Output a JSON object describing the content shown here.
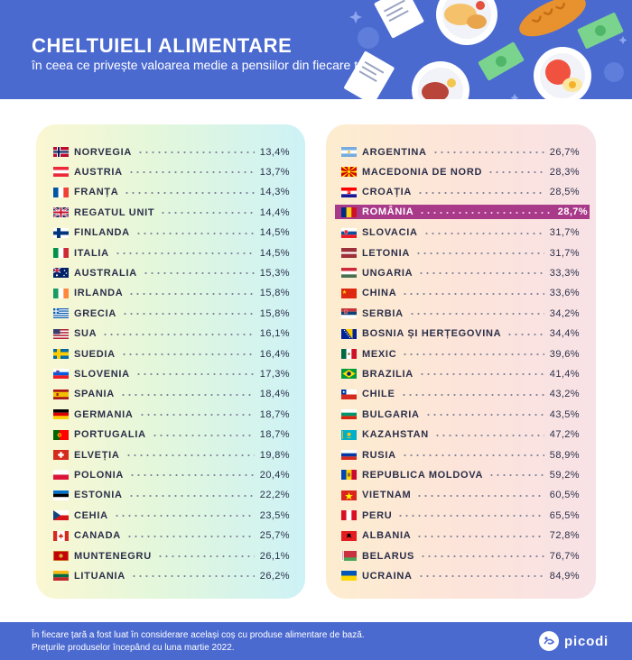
{
  "header": {
    "title": "CHELTUIELI ALIMENTARE",
    "subtitle": "în ceea ce privește valoarea medie a pensiilor din fiecare țară",
    "bg_color": "#4b6ad0"
  },
  "chart_data": {
    "type": "table",
    "title": "CHELTUIELI ALIMENTARE",
    "subtitle": "în ceea ce privește valoarea medie a pensiilor din fiecare țară",
    "highlight": "ROMÂNIA",
    "left_column": [
      {
        "country": "NORVEGIA",
        "value": "13,4%",
        "num": 13.4,
        "flag": "norway"
      },
      {
        "country": "AUSTRIA",
        "value": "13,7%",
        "num": 13.7,
        "flag": "austria"
      },
      {
        "country": "FRANȚA",
        "value": "14,3%",
        "num": 14.3,
        "flag": "france"
      },
      {
        "country": "REGATUL UNIT",
        "value": "14,4%",
        "num": 14.4,
        "flag": "uk"
      },
      {
        "country": "FINLANDA",
        "value": "14,5%",
        "num": 14.5,
        "flag": "finland"
      },
      {
        "country": "ITALIA",
        "value": "14,5%",
        "num": 14.5,
        "flag": "italy"
      },
      {
        "country": "AUSTRALIA",
        "value": "15,3%",
        "num": 15.3,
        "flag": "australia"
      },
      {
        "country": "IRLANDA",
        "value": "15,8%",
        "num": 15.8,
        "flag": "ireland"
      },
      {
        "country": "GRECIA",
        "value": "15,8%",
        "num": 15.8,
        "flag": "greece"
      },
      {
        "country": "SUA",
        "value": "16,1%",
        "num": 16.1,
        "flag": "usa"
      },
      {
        "country": "SUEDIA",
        "value": "16,4%",
        "num": 16.4,
        "flag": "sweden"
      },
      {
        "country": "SLOVENIA",
        "value": "17,3%",
        "num": 17.3,
        "flag": "slovenia"
      },
      {
        "country": "SPANIA",
        "value": "18,4%",
        "num": 18.4,
        "flag": "spain"
      },
      {
        "country": "GERMANIA",
        "value": "18,7%",
        "num": 18.7,
        "flag": "germany"
      },
      {
        "country": "PORTUGALIA",
        "value": "18,7%",
        "num": 18.7,
        "flag": "portugal"
      },
      {
        "country": "ELVEȚIA",
        "value": "19,8%",
        "num": 19.8,
        "flag": "switzerland"
      },
      {
        "country": "POLONIA",
        "value": "20,4%",
        "num": 20.4,
        "flag": "poland"
      },
      {
        "country": "ESTONIA",
        "value": "22,2%",
        "num": 22.2,
        "flag": "estonia"
      },
      {
        "country": "CEHIA",
        "value": "23,5%",
        "num": 23.5,
        "flag": "czechia"
      },
      {
        "country": "CANADA",
        "value": "25,7%",
        "num": 25.7,
        "flag": "canada"
      },
      {
        "country": "MUNTENEGRU",
        "value": "26,1%",
        "num": 26.1,
        "flag": "montenegro"
      },
      {
        "country": "LITUANIA",
        "value": "26,2%",
        "num": 26.2,
        "flag": "lithuania"
      }
    ],
    "right_column": [
      {
        "country": "ARGENTINA",
        "value": "26,7%",
        "num": 26.7,
        "flag": "argentina"
      },
      {
        "country": "MACEDONIA DE NORD",
        "value": "28,3%",
        "num": 28.3,
        "flag": "north-macedonia"
      },
      {
        "country": "CROAȚIA",
        "value": "28,5%",
        "num": 28.5,
        "flag": "croatia"
      },
      {
        "country": "ROMÂNIA",
        "value": "28,7%",
        "num": 28.7,
        "flag": "romania"
      },
      {
        "country": "SLOVACIA",
        "value": "31,7%",
        "num": 31.7,
        "flag": "slovakia"
      },
      {
        "country": "LETONIA",
        "value": "31,7%",
        "num": 31.7,
        "flag": "latvia"
      },
      {
        "country": "UNGARIA",
        "value": "33,3%",
        "num": 33.3,
        "flag": "hungary"
      },
      {
        "country": "CHINA",
        "value": "33,6%",
        "num": 33.6,
        "flag": "china"
      },
      {
        "country": "SERBIA",
        "value": "34,2%",
        "num": 34.2,
        "flag": "serbia"
      },
      {
        "country": "BOSNIA ȘI HERȚEGOVINA",
        "value": "34,4%",
        "num": 34.4,
        "flag": "bosnia"
      },
      {
        "country": "MEXIC",
        "value": "39,6%",
        "num": 39.6,
        "flag": "mexico"
      },
      {
        "country": "BRAZILIA",
        "value": "41,4%",
        "num": 41.4,
        "flag": "brazil"
      },
      {
        "country": "CHILE",
        "value": "43,2%",
        "num": 43.2,
        "flag": "chile"
      },
      {
        "country": "BULGARIA",
        "value": "43,5%",
        "num": 43.5,
        "flag": "bulgaria"
      },
      {
        "country": "KAZAHSTAN",
        "value": "47,2%",
        "num": 47.2,
        "flag": "kazakhstan"
      },
      {
        "country": "RUSIA",
        "value": "58,9%",
        "num": 58.9,
        "flag": "russia"
      },
      {
        "country": "REPUBLICA MOLDOVA",
        "value": "59,2%",
        "num": 59.2,
        "flag": "moldova"
      },
      {
        "country": "VIETNAM",
        "value": "60,5%",
        "num": 60.5,
        "flag": "vietnam"
      },
      {
        "country": "PERU",
        "value": "65,5%",
        "num": 65.5,
        "flag": "peru"
      },
      {
        "country": "ALBANIA",
        "value": "72,8%",
        "num": 72.8,
        "flag": "albania"
      },
      {
        "country": "BELARUS",
        "value": "76,7%",
        "num": 76.7,
        "flag": "belarus"
      },
      {
        "country": "UCRAINA",
        "value": "84,9%",
        "num": 84.9,
        "flag": "ukraine"
      }
    ]
  },
  "footer": {
    "note_1": "În fiecare țară a fost luat în considerare același coș cu produse alimentare de bază.",
    "note_2": "Prețurile produselor începând cu luna martie 2022.",
    "brand": "picodi"
  },
  "colors": {
    "highlight": "#a93a8a",
    "text": "#2b2f4a",
    "accent": "#4b6ad0"
  }
}
